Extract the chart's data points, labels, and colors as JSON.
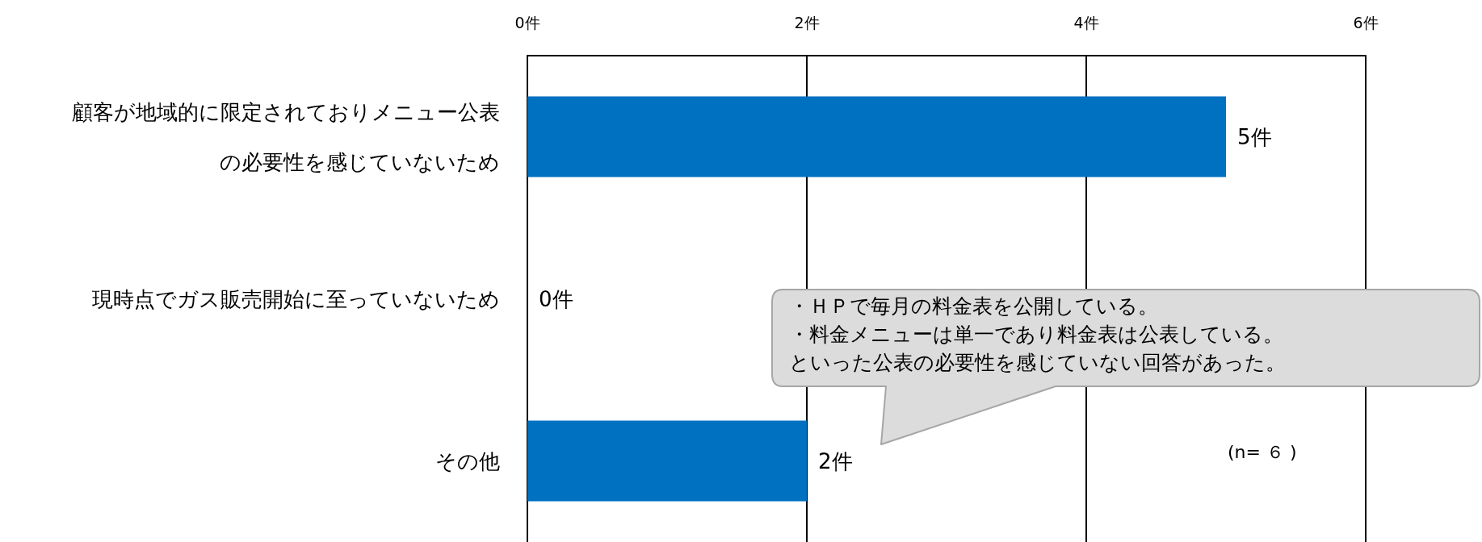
{
  "chart_data": {
    "type": "bar",
    "orientation": "horizontal",
    "categories": [
      "顧客が地域的に限定されておりメニュー公表の必要性を感じていないため",
      "現時点でガス販売開始に至っていないため",
      "その他"
    ],
    "values": [
      5,
      0,
      2
    ],
    "color": "#0070c0",
    "value_labels": [
      "5件",
      "0件",
      "2件"
    ],
    "xlim": [
      0,
      6
    ],
    "xticks": [
      {
        "value": 0,
        "label": "0件"
      },
      {
        "value": 2,
        "label": "2件"
      },
      {
        "value": 4,
        "label": "4件"
      },
      {
        "value": 6,
        "label": "6件"
      }
    ],
    "grid": "x",
    "annotations": [
      "・ＨＰで毎月の料金表を公開している。・料金メニューは単一であり料金表は公表している。といった公表の必要性を感じていない回答があった。",
      "(n= ６ )"
    ]
  }
}
